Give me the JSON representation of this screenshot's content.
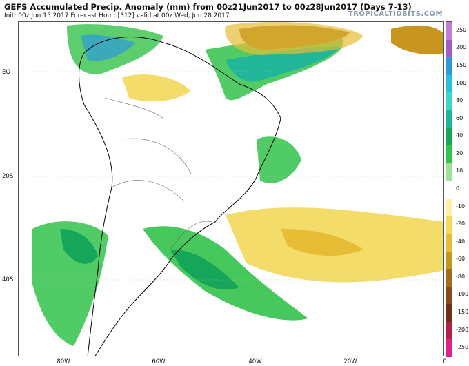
{
  "header": {
    "title": "GEFS Accumulated Precip. Anomaly (mm) from 00z21Jun2017 to 00z28Jun2017 (Days 7-13)",
    "subtitle": "Init: 00z Jun 15 2017   Forecast Hour: [312]   valid at 00z Wed, Jun 28 2017",
    "brand": "TROPICALTIDBITS.COM"
  },
  "axes": {
    "lat_labels": [
      "EQ",
      "20S",
      "40S"
    ],
    "lon_labels": [
      "80W",
      "60W",
      "40W",
      "20W",
      "0"
    ]
  },
  "colorbar": {
    "levels": [
      "250",
      "200",
      "150",
      "100",
      "80",
      "60",
      "40",
      "20",
      "10",
      "0",
      "-10",
      "-20",
      "-40",
      "-60",
      "-80",
      "-100",
      "-150",
      "-200",
      "-250"
    ],
    "colors": [
      "#c27bd6",
      "#a25cc4",
      "#2e9ad8",
      "#27c0e0",
      "#3ed6c8",
      "#21b69a",
      "#16a65a",
      "#33c24a",
      "#9ee29a",
      "#ffffff",
      "#fff0a8",
      "#f3d85a",
      "#e6bd35",
      "#c8951f",
      "#a56b1d",
      "#8a4a1c",
      "#6e2f16",
      "#b0214a",
      "#e0218a"
    ],
    "unit": "mm"
  },
  "colors": {
    "wet": "#33c24a",
    "very_wet": "#16a65a",
    "dry": "#f3d85a",
    "very_dry": "#a56b1d",
    "land_outline": "#000000",
    "border": "#666666"
  }
}
